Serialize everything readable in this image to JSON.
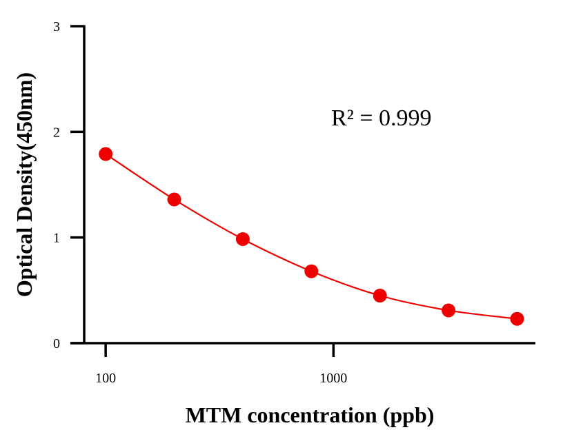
{
  "chart_data": {
    "type": "scatter",
    "xlabel": "MTM concentration (ppb)",
    "ylabel": "Optical Density(450nm)",
    "xscale": "log",
    "xlim": [
      70,
      7700
    ],
    "ylim": [
      0,
      3
    ],
    "xticks": [
      100,
      1000
    ],
    "xtick_labels": [
      "100",
      "1000"
    ],
    "yticks": [
      0,
      1,
      2,
      3
    ],
    "ytick_labels": [
      "0",
      "1",
      "2",
      "3"
    ],
    "grid": false,
    "annotation": "R² = 0.999",
    "color": "#ee0000",
    "series": [
      {
        "x": [
          100,
          200,
          400,
          800,
          1600,
          3200,
          6400
        ],
        "y": [
          1.79,
          1.36,
          0.985,
          0.68,
          0.45,
          0.31,
          0.23
        ],
        "fit_curve": true
      }
    ]
  }
}
